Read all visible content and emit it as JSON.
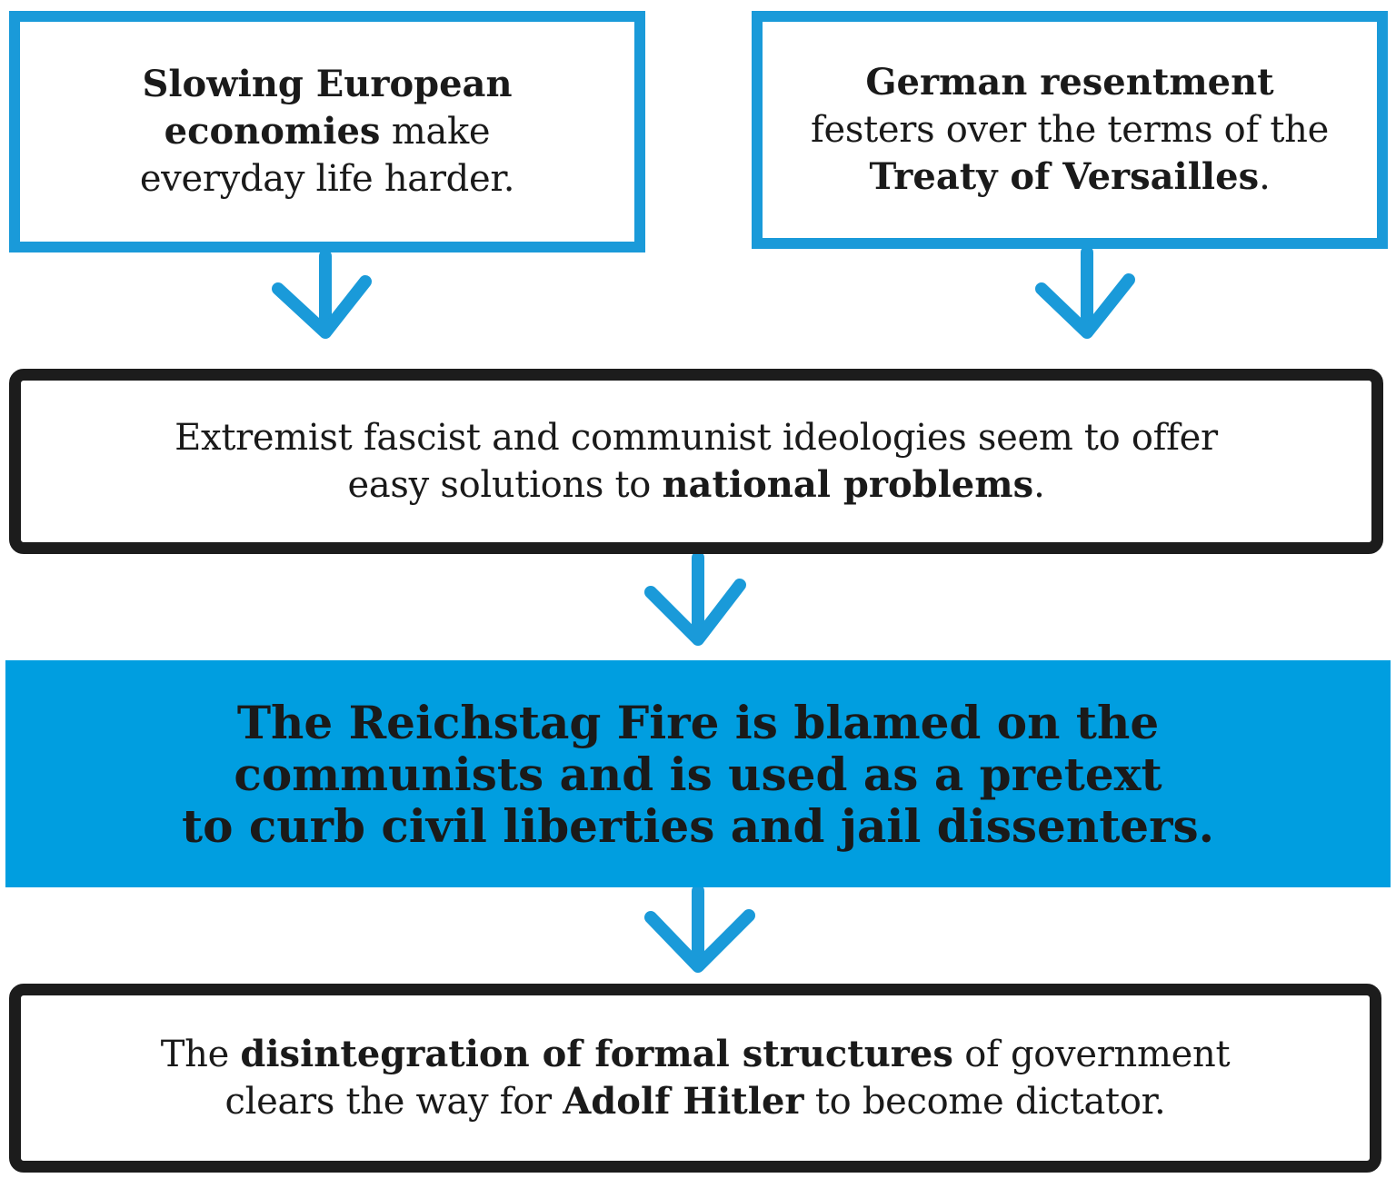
{
  "nodes": {
    "economies": {
      "bold_1": "Slowing European",
      "bold_2": "economies",
      "text_1": " make",
      "text_2": "everyday life harder."
    },
    "resentment": {
      "bold_1": "German resentment",
      "text_1": "festers over the terms of the",
      "bold_2": "Treaty of Versailles",
      "text_2": "."
    },
    "ideologies": {
      "text_1": "Extremist fascist and communist ideologies seem to offer",
      "text_2": "easy solutions to ",
      "bold_1": "national problems",
      "text_3": "."
    },
    "fire": {
      "line_1": "The Reichstag Fire is blamed on the",
      "line_2": "communists and is used as a pretext",
      "line_3": "to curb civil liberties and jail dissenters."
    },
    "disintegration": {
      "text_1": "The ",
      "bold_1": "disintegration of formal structures",
      "text_2": " of government",
      "text_3": "clears the way for ",
      "bold_2": "Adolf Hitler",
      "text_4": " to become dictator."
    }
  },
  "edges": [
    {
      "from": "economies",
      "to": "ideologies"
    },
    {
      "from": "resentment",
      "to": "ideologies"
    },
    {
      "from": "ideologies",
      "to": "fire"
    },
    {
      "from": "fire",
      "to": "disintegration"
    }
  ],
  "colors": {
    "accent_blue": "#1a9ad9",
    "fill_blue": "#009ee0",
    "outline_black": "#1c1c1c",
    "text": "#1a1a1a"
  }
}
